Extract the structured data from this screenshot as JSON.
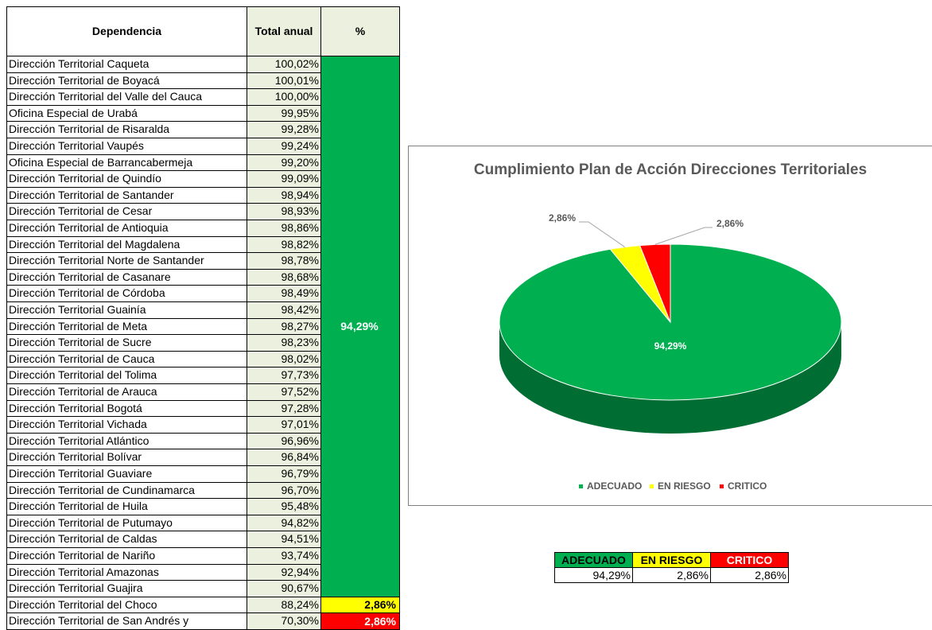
{
  "table": {
    "headers": [
      "Dependencia",
      "Total anual",
      "%"
    ],
    "rows": [
      [
        "Dirección Territorial Caqueta",
        "100,02%"
      ],
      [
        "Dirección Territorial de Boyacá",
        "100,01%"
      ],
      [
        "Dirección Territorial del Valle del Cauca",
        "100,00%"
      ],
      [
        "Oficina Especial de Urabá",
        "99,95%"
      ],
      [
        "Dirección Territorial de Risaralda",
        "99,28%"
      ],
      [
        "Dirección Territorial Vaupés",
        "99,24%"
      ],
      [
        "Oficina Especial de Barrancabermeja",
        "99,20%"
      ],
      [
        "Dirección Territorial de Quindío",
        "99,09%"
      ],
      [
        "Dirección Territorial de Santander",
        "98,94%"
      ],
      [
        "Dirección Territorial de Cesar",
        "98,93%"
      ],
      [
        "Dirección Territorial de Antioquia",
        "98,86%"
      ],
      [
        "Dirección Territorial del Magdalena",
        "98,82%"
      ],
      [
        "Dirección Territorial Norte de Santander",
        "98,78%"
      ],
      [
        "Dirección Territorial de Casanare",
        "98,68%"
      ],
      [
        "Dirección Territorial de Córdoba",
        "98,49%"
      ],
      [
        "Dirección Territorial Guainía",
        "98,42%"
      ],
      [
        "Dirección Territorial de Meta",
        "98,27%"
      ],
      [
        "Dirección Territorial de Sucre",
        "98,23%"
      ],
      [
        "Dirección Territorial de Cauca",
        "98,02%"
      ],
      [
        "Dirección Territorial del Tolima",
        "97,73%"
      ],
      [
        "Dirección Territorial de Arauca",
        "97,52%"
      ],
      [
        "Dirección Territorial Bogotá",
        "97,28%"
      ],
      [
        "Dirección Territorial Vichada",
        "97,01%"
      ],
      [
        "Dirección Territorial Atlántico",
        "96,96%"
      ],
      [
        "Dirección Territorial Bolívar",
        "96,84%"
      ],
      [
        "Dirección Territorial Guaviare",
        "96,79%"
      ],
      [
        "Dirección Territorial de Cundinamarca",
        "96,70%"
      ],
      [
        "Dirección Territorial de Huila",
        "95,48%"
      ],
      [
        "Dirección Territorial de Putumayo",
        "94,82%"
      ],
      [
        "Dirección Territorial de Caldas",
        "94,51%"
      ],
      [
        "Dirección Territorial de Nariño",
        "93,74%"
      ],
      [
        "Dirección Territorial Amazonas",
        "92,94%"
      ],
      [
        "Dirección Territorial Guajira",
        "90,67%"
      ],
      [
        "Dirección Territorial del Choco",
        "88,24%"
      ],
      [
        "Dirección Territorial de San Andrés y",
        "70,30%"
      ]
    ],
    "percent_cells": [
      "94,29%",
      "2,86%",
      "2,86%"
    ]
  },
  "chart_data": {
    "type": "pie",
    "title": "Cumplimiento Plan de Acción Direcciones Territoriales",
    "categories": [
      "ADECUADO",
      "EN RIESGO",
      "CRITICO"
    ],
    "values": [
      94.29,
      2.86,
      2.86
    ],
    "value_labels": [
      "94,29%",
      "2,86%",
      "2,86%"
    ],
    "colors": [
      "#00b050",
      "#ffff00",
      "#ff0000"
    ],
    "legend": "bottom"
  },
  "summary": {
    "headers": [
      "ADECUADO",
      "EN RIESGO",
      "CRITICO"
    ],
    "values": [
      "94,29%",
      "2,86%",
      "2,86%"
    ]
  }
}
